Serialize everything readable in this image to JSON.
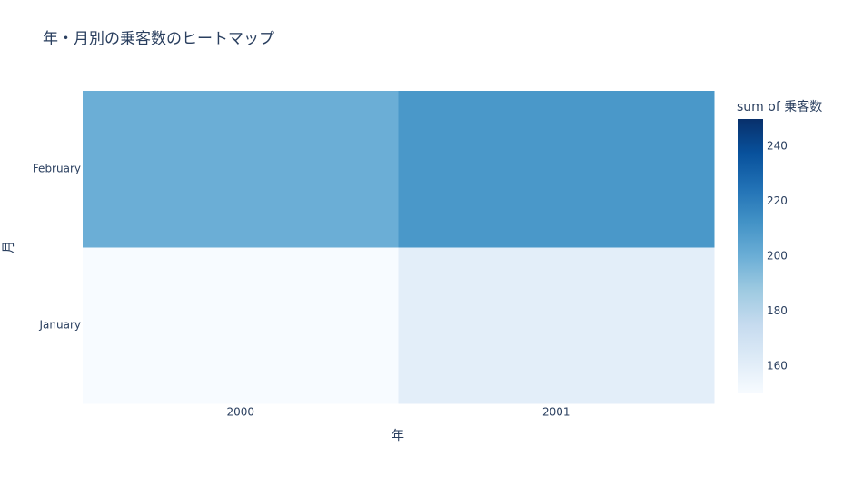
{
  "chart_data": {
    "type": "heatmap",
    "title": "年・月別の乗客数のヒートマップ",
    "x_label": "年",
    "y_label": "月",
    "x": [
      "2000",
      "2001"
    ],
    "y": [
      "January",
      "February"
    ],
    "z": [
      [
        150,
        160
      ],
      [
        200,
        210
      ]
    ],
    "colorbar_title": "sum of 乗客数",
    "zlim": [
      150,
      250
    ],
    "zticks": [
      160,
      180,
      200,
      220,
      240
    ],
    "colorscale": [
      "#f7fbff",
      "#deebf7",
      "#c6dbef",
      "#9ecae1",
      "#6baed6",
      "#4292c6",
      "#2171b5",
      "#08519c",
      "#08306b"
    ]
  }
}
